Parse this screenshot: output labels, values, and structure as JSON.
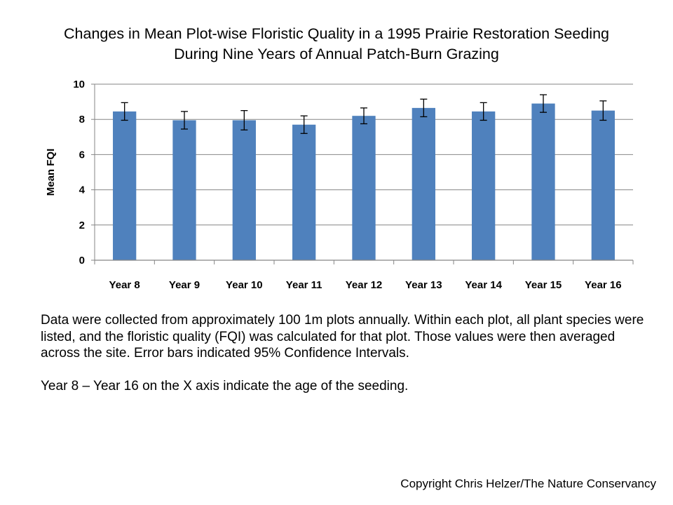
{
  "chart_data": {
    "type": "bar",
    "title_lines": [
      "Changes in Mean Plot-wise Floristic Quality in a 1995 Prairie Restoration Seeding",
      "During Nine Years of Annual Patch-Burn Grazing"
    ],
    "xlabel": "",
    "ylabel": "Mean FQI",
    "ylim": [
      0,
      10
    ],
    "yticks": [
      0,
      2,
      4,
      6,
      8,
      10
    ],
    "grid": true,
    "categories": [
      "Year 8",
      "Year 9",
      "Year 10",
      "Year 11",
      "Year 12",
      "Year 13",
      "Year 14",
      "Year 15",
      "Year 16"
    ],
    "values": [
      8.45,
      7.95,
      7.95,
      7.7,
      8.2,
      8.65,
      8.45,
      8.9,
      8.5
    ],
    "error": [
      0.5,
      0.5,
      0.55,
      0.5,
      0.45,
      0.5,
      0.5,
      0.5,
      0.55
    ],
    "bar_color": "#4F81BD",
    "grid_color": "#868686"
  },
  "description": {
    "paragraphs": [
      "Data were collected from approximately 100 1m plots annually.  Within each plot, all plant species were listed, and the floristic quality (FQI) was calculated for that plot.  Those values were then averaged across the site.  Error bars indicated 95% Confidence Intervals.",
      "Year 8 – Year 16 on the X axis indicate the age of the seeding."
    ]
  },
  "copyright": "Copyright Chris Helzer/The Nature Conservancy"
}
